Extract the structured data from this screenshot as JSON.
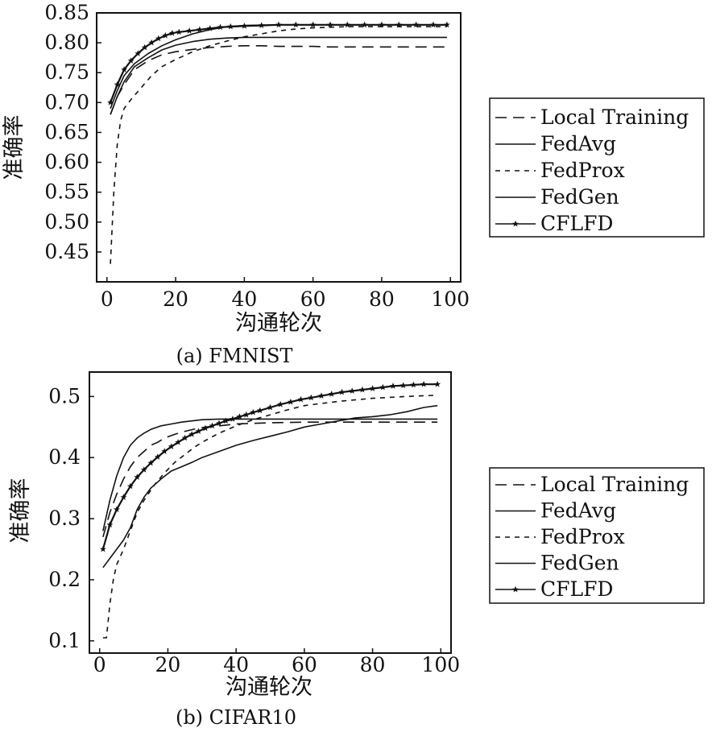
{
  "chart_data": [
    {
      "type": "line",
      "caption": "(a) FMNIST",
      "xlabel": "沟通轮次",
      "ylabel": "准确率",
      "xlim": [
        -3,
        103
      ],
      "ylim": [
        0.4,
        0.85
      ],
      "xticks": [
        0,
        20,
        40,
        60,
        80,
        100
      ],
      "yticks": [
        0.45,
        0.5,
        0.55,
        0.6,
        0.65,
        0.7,
        0.75,
        0.8,
        0.85
      ],
      "xtick_labels": [
        "0",
        "20",
        "40",
        "60",
        "80",
        "100"
      ],
      "ytick_labels": [
        "0.45",
        "0.50",
        "0.55",
        "0.60",
        "0.65",
        "0.70",
        "0.75",
        "0.80",
        "0.85"
      ],
      "grid": false,
      "legend_position": "right",
      "series": [
        {
          "name": "Local Training",
          "style": "longdash",
          "x": [
            1,
            3,
            5,
            8,
            12,
            16,
            20,
            25,
            30,
            35,
            40,
            45,
            50,
            55,
            60,
            65,
            70,
            75,
            80,
            85,
            90,
            95,
            99
          ],
          "y": [
            0.68,
            0.71,
            0.73,
            0.755,
            0.77,
            0.78,
            0.785,
            0.789,
            0.792,
            0.794,
            0.795,
            0.795,
            0.794,
            0.794,
            0.794,
            0.793,
            0.793,
            0.793,
            0.793,
            0.793,
            0.793,
            0.793,
            0.793
          ]
        },
        {
          "name": "FedAvg",
          "style": "solid",
          "x": [
            1,
            3,
            5,
            8,
            12,
            16,
            20,
            25,
            30,
            35,
            40,
            50,
            60,
            70,
            80,
            90,
            99
          ],
          "y": [
            0.69,
            0.72,
            0.745,
            0.765,
            0.782,
            0.795,
            0.805,
            0.815,
            0.822,
            0.827,
            0.829,
            0.83,
            0.83,
            0.83,
            0.83,
            0.83,
            0.83
          ]
        },
        {
          "name": "FedProx",
          "style": "shortdash",
          "x": [
            1,
            2,
            3,
            4,
            5,
            7,
            10,
            13,
            16,
            20,
            25,
            30,
            35,
            40,
            45,
            50,
            55,
            60,
            65,
            70,
            75,
            80,
            85,
            90,
            95,
            99
          ],
          "y": [
            0.43,
            0.55,
            0.63,
            0.67,
            0.69,
            0.705,
            0.725,
            0.745,
            0.76,
            0.772,
            0.785,
            0.795,
            0.803,
            0.81,
            0.815,
            0.82,
            0.823,
            0.825,
            0.826,
            0.827,
            0.827,
            0.827,
            0.827,
            0.827,
            0.827,
            0.827
          ]
        },
        {
          "name": "FedGen",
          "style": "solid",
          "x": [
            1,
            3,
            5,
            8,
            12,
            16,
            20,
            25,
            30,
            35,
            40,
            50,
            60,
            70,
            80,
            90,
            99
          ],
          "y": [
            0.68,
            0.71,
            0.735,
            0.76,
            0.775,
            0.788,
            0.796,
            0.802,
            0.806,
            0.808,
            0.809,
            0.809,
            0.809,
            0.809,
            0.809,
            0.809,
            0.809
          ]
        },
        {
          "name": "CFLFD",
          "style": "star",
          "x": [
            1,
            3,
            5,
            7,
            9,
            11,
            13,
            15,
            17,
            19,
            21,
            24,
            27,
            30,
            33,
            36,
            40,
            45,
            50,
            55,
            60,
            65,
            70,
            75,
            80,
            85,
            90,
            95,
            99
          ],
          "y": [
            0.7,
            0.73,
            0.755,
            0.77,
            0.782,
            0.792,
            0.8,
            0.807,
            0.812,
            0.816,
            0.818,
            0.82,
            0.822,
            0.824,
            0.826,
            0.827,
            0.828,
            0.829,
            0.83,
            0.83,
            0.83,
            0.83,
            0.83,
            0.83,
            0.83,
            0.83,
            0.83,
            0.83,
            0.83
          ]
        }
      ]
    },
    {
      "type": "line",
      "caption": "(b) CIFAR10",
      "xlabel": "沟通轮次",
      "ylabel": "准确率",
      "xlim": [
        -3,
        103
      ],
      "ylim": [
        0.08,
        0.54
      ],
      "xticks": [
        0,
        20,
        40,
        60,
        80,
        100
      ],
      "yticks": [
        0.1,
        0.2,
        0.3,
        0.4,
        0.5
      ],
      "xtick_labels": [
        "0",
        "20",
        "40",
        "60",
        "80",
        "100"
      ],
      "ytick_labels": [
        "0.1",
        "0.2",
        "0.3",
        "0.4",
        "0.5"
      ],
      "grid": false,
      "legend_position": "right",
      "series": [
        {
          "name": "Local Training",
          "style": "longdash",
          "x": [
            1,
            3,
            5,
            7,
            9,
            11,
            13,
            15,
            17,
            19,
            22,
            25,
            28,
            31,
            35,
            40,
            45,
            50,
            60,
            70,
            80,
            90,
            99
          ],
          "y": [
            0.27,
            0.31,
            0.34,
            0.365,
            0.385,
            0.4,
            0.41,
            0.42,
            0.425,
            0.432,
            0.438,
            0.443,
            0.447,
            0.45,
            0.452,
            0.455,
            0.456,
            0.457,
            0.458,
            0.458,
            0.458,
            0.458,
            0.458
          ]
        },
        {
          "name": "FedAvg",
          "style": "solid",
          "x": [
            1,
            3,
            5,
            7,
            9,
            11,
            13,
            15,
            18,
            21,
            24,
            27,
            30,
            35,
            40,
            50,
            60,
            70,
            80,
            90,
            99
          ],
          "y": [
            0.28,
            0.33,
            0.37,
            0.4,
            0.42,
            0.432,
            0.44,
            0.446,
            0.452,
            0.455,
            0.458,
            0.46,
            0.462,
            0.463,
            0.463,
            0.463,
            0.463,
            0.463,
            0.463,
            0.463,
            0.463
          ]
        },
        {
          "name": "FedProx",
          "style": "shortdash",
          "x": [
            1,
            2,
            3,
            4,
            5,
            7,
            9,
            11,
            13,
            16,
            19,
            22,
            25,
            28,
            31,
            35,
            40,
            45,
            50,
            55,
            60,
            70,
            80,
            90,
            99
          ],
          "y": [
            0.105,
            0.105,
            0.16,
            0.2,
            0.225,
            0.25,
            0.28,
            0.31,
            0.33,
            0.355,
            0.375,
            0.392,
            0.405,
            0.418,
            0.428,
            0.44,
            0.452,
            0.462,
            0.47,
            0.478,
            0.485,
            0.492,
            0.497,
            0.5,
            0.502
          ]
        },
        {
          "name": "FedGen",
          "style": "solid",
          "x": [
            1,
            3,
            5,
            7,
            9,
            11,
            13,
            15,
            18,
            21,
            24,
            27,
            30,
            35,
            40,
            45,
            50,
            55,
            60,
            65,
            70,
            75,
            80,
            85,
            90,
            95,
            99
          ],
          "y": [
            0.22,
            0.235,
            0.25,
            0.265,
            0.285,
            0.315,
            0.335,
            0.35,
            0.365,
            0.378,
            0.385,
            0.392,
            0.4,
            0.41,
            0.42,
            0.428,
            0.435,
            0.442,
            0.45,
            0.455,
            0.46,
            0.465,
            0.467,
            0.47,
            0.475,
            0.482,
            0.485
          ]
        },
        {
          "name": "CFLFD",
          "style": "star",
          "x": [
            1,
            3,
            5,
            7,
            9,
            11,
            13,
            15,
            17,
            19,
            21,
            23,
            25,
            27,
            29,
            31,
            33,
            35,
            37,
            39,
            41,
            43,
            45,
            47,
            50,
            53,
            56,
            59,
            62,
            65,
            68,
            71,
            74,
            77,
            80,
            83,
            86,
            89,
            92,
            95,
            99
          ],
          "y": [
            0.25,
            0.29,
            0.315,
            0.335,
            0.353,
            0.368,
            0.38,
            0.391,
            0.401,
            0.41,
            0.418,
            0.425,
            0.432,
            0.438,
            0.443,
            0.448,
            0.452,
            0.456,
            0.46,
            0.463,
            0.467,
            0.47,
            0.474,
            0.477,
            0.482,
            0.487,
            0.491,
            0.495,
            0.498,
            0.501,
            0.504,
            0.507,
            0.509,
            0.511,
            0.513,
            0.515,
            0.517,
            0.518,
            0.519,
            0.52,
            0.52
          ]
        }
      ]
    }
  ]
}
